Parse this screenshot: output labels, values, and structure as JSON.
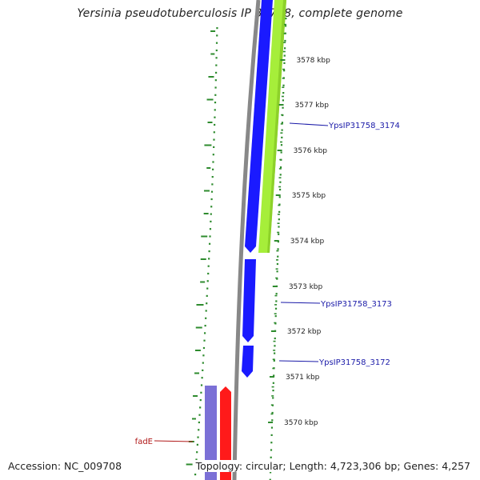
{
  "title": "Yersinia pseudotuberculosis IP 31758, complete genome",
  "accession": "Accession: NC_009708",
  "summary": "Topology: circular; Length: 4,723,306 bp; Genes: 4,257",
  "colors": {
    "backbone": "#888888",
    "cds_forward": "#1a1aff",
    "cds_reverse": "#a6ee3a",
    "cds_blue_purple": "#7b70d6",
    "cds_red": "#ff1a1a",
    "gc_skew": "#2e8b2e",
    "label_blue": "#1a1aa8",
    "label_red": "#b01818",
    "tick_text": "#222222"
  },
  "tick_labels": [
    "3578 kbp",
    "3577 kbp",
    "3576 kbp",
    "3575 kbp",
    "3574 kbp",
    "3573 kbp",
    "3572 kbp",
    "3571 kbp",
    "3570 kbp"
  ],
  "gene_labels": [
    {
      "name": "YpsIP31758_3174",
      "color": "blue"
    },
    {
      "name": "YpsIP31758_3173",
      "color": "blue"
    },
    {
      "name": "YpsIP31758_3172",
      "color": "blue"
    },
    {
      "name": "fadE",
      "color": "red"
    }
  ]
}
